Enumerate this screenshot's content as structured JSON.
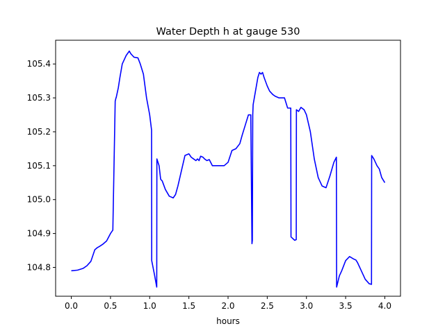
{
  "chart_data": {
    "type": "line",
    "title": "Water Depth h at gauge 530",
    "xlabel": "hours",
    "ylabel": "",
    "xlim": [
      -0.2,
      4.2
    ],
    "ylim": [
      104.715,
      105.47
    ],
    "xticks": [
      0.0,
      0.5,
      1.0,
      1.5,
      2.0,
      2.5,
      3.0,
      3.5,
      4.0
    ],
    "xtick_labels": [
      "0.0",
      "0.5",
      "1.0",
      "1.5",
      "2.0",
      "2.5",
      "3.0",
      "3.5",
      "4.0"
    ],
    "yticks": [
      104.8,
      104.9,
      105.0,
      105.1,
      105.2,
      105.3,
      105.4
    ],
    "ytick_labels": [
      "104.8",
      "104.9",
      "105.0",
      "105.1",
      "105.2",
      "105.3",
      "105.4"
    ],
    "grid": false,
    "series": [
      {
        "color": "#0000ff",
        "x": [
          0.0,
          0.08,
          0.15,
          0.2,
          0.25,
          0.3,
          0.33,
          0.36,
          0.4,
          0.45,
          0.5,
          0.53,
          0.56,
          0.57,
          0.572,
          0.6,
          0.62,
          0.65,
          0.7,
          0.74,
          0.76,
          0.78,
          0.8,
          0.85,
          0.88,
          0.92,
          0.96,
          1.0,
          1.024,
          1.026,
          1.06,
          1.09,
          1.092,
          1.12,
          1.14,
          1.16,
          1.2,
          1.25,
          1.3,
          1.33,
          1.36,
          1.4,
          1.45,
          1.5,
          1.53,
          1.56,
          1.59,
          1.61,
          1.63,
          1.65,
          1.68,
          1.7,
          1.73,
          1.76,
          1.8,
          1.85,
          1.88,
          1.9,
          1.95,
          2.0,
          2.05,
          2.1,
          2.15,
          2.18,
          2.22,
          2.26,
          2.29,
          2.305,
          2.31,
          2.315,
          2.32,
          2.35,
          2.38,
          2.4,
          2.42,
          2.44,
          2.46,
          2.5,
          2.53,
          2.57,
          2.6,
          2.65,
          2.68,
          2.72,
          2.76,
          2.8,
          2.803,
          2.85,
          2.87,
          2.872,
          2.9,
          2.93,
          2.97,
          3.0,
          3.05,
          3.1,
          3.15,
          3.2,
          3.25,
          3.3,
          3.35,
          3.382,
          3.385,
          3.42,
          3.45,
          3.5,
          3.55,
          3.6,
          3.63,
          3.65,
          3.7,
          3.75,
          3.8,
          3.83,
          3.832,
          3.86,
          3.9,
          3.93,
          3.96,
          4.0
        ],
        "y": [
          104.79,
          104.792,
          104.797,
          104.805,
          104.818,
          104.852,
          104.858,
          104.862,
          104.868,
          104.878,
          104.9,
          104.91,
          105.29,
          105.3,
          105.3,
          105.33,
          105.36,
          105.4,
          105.425,
          105.438,
          105.43,
          105.425,
          105.42,
          105.418,
          105.4,
          105.37,
          105.3,
          105.25,
          105.205,
          104.82,
          104.78,
          104.742,
          105.12,
          105.1,
          105.06,
          105.055,
          105.03,
          105.01,
          105.005,
          105.015,
          105.04,
          105.08,
          105.13,
          105.135,
          105.125,
          105.12,
          105.115,
          105.12,
          105.115,
          105.128,
          105.125,
          105.12,
          105.115,
          105.118,
          105.1,
          105.1,
          105.1,
          105.1,
          105.1,
          105.11,
          105.145,
          105.15,
          105.165,
          105.19,
          105.22,
          105.25,
          105.25,
          104.87,
          104.88,
          105.25,
          105.28,
          105.32,
          105.36,
          105.375,
          105.37,
          105.375,
          105.36,
          105.335,
          105.32,
          105.31,
          105.305,
          105.3,
          105.3,
          105.3,
          105.27,
          105.27,
          104.89,
          104.88,
          104.882,
          105.265,
          105.26,
          105.272,
          105.265,
          105.25,
          105.2,
          105.12,
          105.065,
          105.04,
          105.035,
          105.07,
          105.11,
          105.125,
          104.742,
          104.775,
          104.79,
          104.82,
          104.832,
          104.825,
          104.822,
          104.815,
          104.79,
          104.765,
          104.752,
          104.75,
          105.13,
          105.12,
          105.1,
          105.09,
          105.065,
          105.05
        ]
      }
    ]
  }
}
